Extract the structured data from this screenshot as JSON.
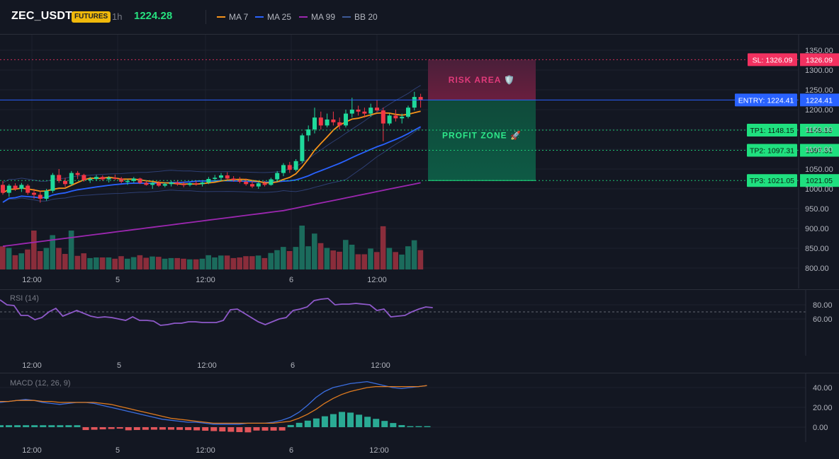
{
  "header": {
    "symbol": "ZEC_USDT",
    "badge": "FUTURES",
    "timeframe": "1h",
    "price": "1224.28",
    "legend": [
      {
        "label": "MA 7",
        "color": "#f7931a"
      },
      {
        "label": "MA 25",
        "color": "#2962ff"
      },
      {
        "label": "MA 99",
        "color": "#9c27b0"
      },
      {
        "label": "BB 20",
        "color": "#3d5a98"
      }
    ]
  },
  "colors": {
    "up": "#1fd99b",
    "down": "#f23645",
    "vol_up": "#1b6b5c",
    "vol_down": "#8a2d3b",
    "sl": "#f23160",
    "entry": "#2962ff",
    "tp": "#1fe07f",
    "ma7": "#f7931a",
    "ma25": "#2962ff",
    "ma99": "#9c27b0",
    "bb": "#2e3f73",
    "rsi": "#8e59c9",
    "macd": "#3b6ee0",
    "signal": "#e07b1f",
    "hist_up": "#2aaa94",
    "hist_down": "#e2555a"
  },
  "main_chart": {
    "y_ticks": [
      "1350.00",
      "1300.00",
      "1250.00",
      "1200.00",
      "1150.00",
      "1100.00",
      "1050.00",
      "1000.00",
      "950.00",
      "900.00",
      "850.00",
      "800.00"
    ],
    "x_labels": [
      "12:00",
      "5",
      "12:00",
      "6",
      "12:00"
    ],
    "levels": [
      {
        "id": "sl",
        "left_label": "SL: 1326.09",
        "value": "1326.09",
        "price": 1326.09
      },
      {
        "id": "entry",
        "left_label": "ENTRY: 1224.41",
        "value": "1224.41",
        "price": 1224.41
      },
      {
        "id": "tp1",
        "left_label": "TP1: 1148.15",
        "value": "1148.15",
        "price": 1148.15
      },
      {
        "id": "tp2",
        "left_label": "TP2: 1097.31",
        "value": "1097.31",
        "price": 1097.31
      },
      {
        "id": "tp3",
        "left_label": "TP3: 1021.05",
        "value": "1021.05",
        "price": 1021.05
      }
    ],
    "risk_label": "RISK AREA 🛡️",
    "profit_label": "PROFIT ZONE 🚀"
  },
  "rsi": {
    "title": "RSI (14)",
    "y_ticks": [
      "80.00",
      "60.00"
    ],
    "x_labels": [
      "12:00",
      "5",
      "12:00",
      "6",
      "12:00"
    ]
  },
  "macd": {
    "title": "MACD (12, 26, 9)",
    "y_ticks": [
      "40.00",
      "20.00",
      "0.00"
    ],
    "x_labels": [
      "12:00",
      "5",
      "12:00",
      "6",
      "12:00"
    ]
  },
  "chart_data": {
    "type": "candlestick",
    "candles": [
      [
        1010,
        1020,
        985,
        990
      ],
      [
        990,
        1012,
        980,
        1008
      ],
      [
        1008,
        1014,
        995,
        1000
      ],
      [
        1000,
        1015,
        992,
        1010
      ],
      [
        1008,
        1012,
        985,
        990
      ],
      [
        990,
        1000,
        975,
        985
      ],
      [
        985,
        995,
        965,
        975
      ],
      [
        975,
        1000,
        970,
        995
      ],
      [
        995,
        1040,
        990,
        1035
      ],
      [
        1035,
        1050,
        1015,
        1020
      ],
      [
        1020,
        1028,
        1005,
        1012
      ],
      [
        1012,
        1045,
        1008,
        1040
      ],
      [
        1040,
        1045,
        1025,
        1035
      ],
      [
        1035,
        1038,
        1018,
        1022
      ],
      [
        1022,
        1030,
        1015,
        1025
      ],
      [
        1025,
        1035,
        1020,
        1030
      ],
      [
        1030,
        1034,
        1020,
        1024
      ],
      [
        1024,
        1032,
        1016,
        1028
      ],
      [
        1028,
        1036,
        1022,
        1026
      ],
      [
        1026,
        1030,
        1014,
        1018
      ],
      [
        1018,
        1024,
        1010,
        1020
      ],
      [
        1020,
        1030,
        1015,
        1026
      ],
      [
        1026,
        1028,
        1012,
        1015
      ],
      [
        1015,
        1022,
        1008,
        1010
      ],
      [
        1010,
        1018,
        1000,
        1015
      ],
      [
        1015,
        1020,
        1005,
        1008
      ],
      [
        1008,
        1016,
        1004,
        1012
      ],
      [
        1012,
        1020,
        1006,
        1016
      ],
      [
        1016,
        1022,
        1008,
        1012
      ],
      [
        1012,
        1018,
        1004,
        1010
      ],
      [
        1010,
        1016,
        1006,
        1014
      ],
      [
        1014,
        1020,
        1008,
        1012
      ],
      [
        1012,
        1018,
        1006,
        1016
      ],
      [
        1016,
        1030,
        1012,
        1025
      ],
      [
        1025,
        1035,
        1018,
        1028
      ],
      [
        1028,
        1040,
        1020,
        1034
      ],
      [
        1034,
        1042,
        1024,
        1026
      ],
      [
        1026,
        1032,
        1018,
        1022
      ],
      [
        1022,
        1030,
        1014,
        1018
      ],
      [
        1018,
        1026,
        1008,
        1012
      ],
      [
        1012,
        1020,
        1002,
        1006
      ],
      [
        1006,
        1018,
        1000,
        1014
      ],
      [
        1014,
        1020,
        1006,
        1010
      ],
      [
        1010,
        1028,
        1008,
        1024
      ],
      [
        1024,
        1045,
        1018,
        1040
      ],
      [
        1040,
        1065,
        1032,
        1060
      ],
      [
        1060,
        1068,
        1040,
        1048
      ],
      [
        1048,
        1075,
        1044,
        1070
      ],
      [
        1070,
        1140,
        1065,
        1135
      ],
      [
        1135,
        1160,
        1120,
        1150
      ],
      [
        1150,
        1205,
        1140,
        1180
      ],
      [
        1180,
        1195,
        1150,
        1160
      ],
      [
        1160,
        1190,
        1155,
        1175
      ],
      [
        1175,
        1195,
        1160,
        1168
      ],
      [
        1168,
        1180,
        1150,
        1160
      ],
      [
        1160,
        1200,
        1155,
        1190
      ],
      [
        1190,
        1230,
        1180,
        1200
      ],
      [
        1200,
        1210,
        1185,
        1195
      ],
      [
        1195,
        1205,
        1180,
        1190
      ],
      [
        1190,
        1215,
        1182,
        1205
      ],
      [
        1205,
        1225,
        1195,
        1198
      ],
      [
        1198,
        1205,
        1120,
        1165
      ],
      [
        1165,
        1190,
        1160,
        1185
      ],
      [
        1185,
        1200,
        1170,
        1178
      ],
      [
        1178,
        1190,
        1165,
        1182
      ],
      [
        1182,
        1210,
        1178,
        1205
      ],
      [
        1205,
        1245,
        1198,
        1232
      ],
      [
        1232,
        1240,
        1205,
        1224
      ]
    ]
  }
}
